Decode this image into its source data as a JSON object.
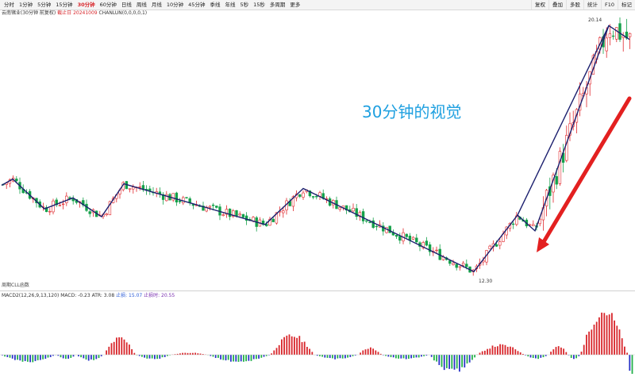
{
  "toolbar": {
    "periods": [
      "分时",
      "1分钟",
      "5分钟",
      "15分钟",
      "30分钟",
      "60分钟",
      "日线",
      "周线",
      "月线",
      "10分钟",
      "45分钟",
      "季线",
      "年线",
      "5秒",
      "15秒",
      "多周期",
      "更多"
    ],
    "active_period": "30分钟",
    "right_items": [
      "复权",
      "叠加",
      "多股",
      "统计",
      "F10",
      "标记"
    ]
  },
  "stock_info": {
    "name": "云南锗业(30分钟 前复权)",
    "end_date": "截止日 20241009",
    "indicator": "CHANLUN(0,0,0,0,1)"
  },
  "chart": {
    "highest_label": "20.14",
    "lowest_label": "12.30",
    "annotation": "30分钟的视觉",
    "indicator_name": "周期CLL函数"
  },
  "macd": {
    "title": "MACD2(12,26,9,13,120)",
    "macd_value": "MACD: -0.23",
    "atr_value": "ATR: 3.08",
    "stop_value": "止损: 15.07",
    "stop_time": "止损时: 20.55"
  },
  "colors": {
    "up": "#e0262b",
    "down": "#14a04a",
    "zigzag": "#1b1f6e",
    "arrow": "#e32020",
    "macd_positive": "#d8262b",
    "macd_negative_blue": "#2a34c8",
    "macd_negative_green": "#22b04a",
    "annotation": "#1fa0e0"
  },
  "chart_data": {
    "type": "candlestick",
    "zigzag_turning_points": [
      15.05,
      15.25,
      14.3,
      14.65,
      14.05,
      15.1,
      13.8,
      14.95,
      13.15,
      14.1,
      12.3,
      14.0,
      13.6,
      20.14,
      19.7
    ],
    "pivot_high": 20.14,
    "pivot_low": 12.3
  }
}
